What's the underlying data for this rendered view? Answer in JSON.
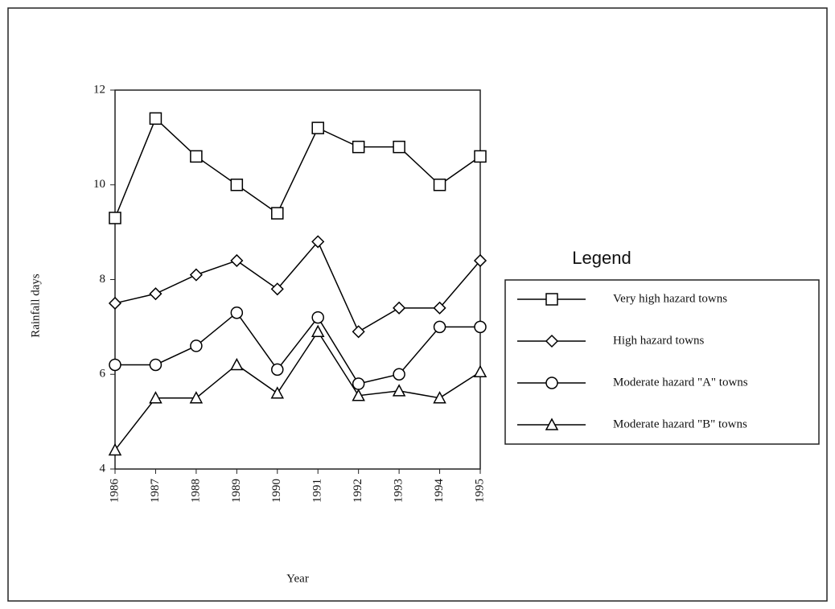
{
  "chart_data": {
    "type": "line",
    "legend_title": "Legend",
    "x_label": "Year",
    "y_label": "Rainfall days",
    "categories": [
      "1986",
      "1987",
      "1988",
      "1989",
      "1990",
      "1991",
      "1992",
      "1993",
      "1994",
      "1995"
    ],
    "series": [
      {
        "name": "Very high hazard towns",
        "color": "#000000",
        "marker": "square",
        "values": [
          9.3,
          11.4,
          10.6,
          10.0,
          9.4,
          11.2,
          10.8,
          10.8,
          10.0,
          10.6
        ]
      },
      {
        "name": "High hazard towns",
        "color": "#000000",
        "marker": "diamond",
        "values": [
          7.5,
          7.7,
          8.1,
          8.4,
          7.8,
          8.8,
          6.9,
          7.4,
          7.4,
          8.4
        ]
      },
      {
        "name": "Moderate hazard \"A\" towns",
        "color": "#000000",
        "marker": "circle",
        "values": [
          6.2,
          6.2,
          6.6,
          7.3,
          6.1,
          7.2,
          5.8,
          6.0,
          7.0,
          7.0
        ]
      },
      {
        "name": "Moderate hazard \"B\" towns",
        "color": "#000000",
        "marker": "triangle",
        "values": [
          4.4,
          5.5,
          5.5,
          6.2,
          5.6,
          6.9,
          5.55,
          5.65,
          5.5,
          6.05
        ]
      }
    ],
    "ylim": [
      4,
      12
    ],
    "yticks": [
      4,
      6,
      8,
      10,
      12
    ],
    "grid": false
  }
}
